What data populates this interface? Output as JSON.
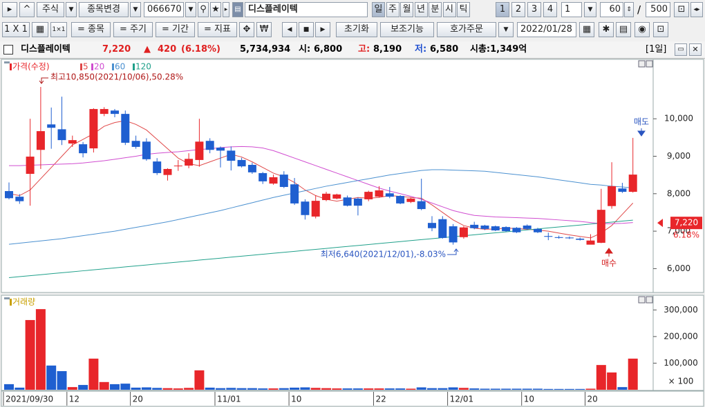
{
  "toolbar": {
    "market": "주식",
    "change": "종목변경",
    "code": "066670",
    "name": "디스플레이텍",
    "periods": [
      "일",
      "주",
      "월",
      "년",
      "분",
      "시",
      "틱"
    ],
    "counts": [
      "1",
      "2",
      "3",
      "4"
    ],
    "unit": "1",
    "view": "60",
    "slash": "/",
    "total": "500",
    "layout": "1 X 1",
    "menus": [
      "= 종목",
      "= 주기",
      "= 기간",
      "= 지표"
    ],
    "buttons": [
      "초기화",
      "보조기능",
      "호가주문"
    ],
    "date": "2022/01/28"
  },
  "info": {
    "name": "디스플레이텍",
    "price": "7,220",
    "arrow": "▲",
    "change": "420",
    "rate": "(6.18%)",
    "volume": "5,734,934",
    "open_label": "시:",
    "open": "6,800",
    "high_label": "고:",
    "high": "8,190",
    "low_label": "저:",
    "low": "6,580",
    "cap": "시총:1,349억",
    "period": "[1일]"
  },
  "chart_data": [
    {
      "type": "candlestick",
      "ylim": [
        5400,
        11550
      ],
      "yticks": [
        {
          "value": 6000,
          "label": "6,000"
        },
        {
          "value": 7000,
          "label": "7,000"
        },
        {
          "value": 8000,
          "label": "8,000"
        },
        {
          "value": 9000,
          "label": "9,000"
        },
        {
          "value": 10000,
          "label": "10,000"
        }
      ],
      "grid": false,
      "current_price": {
        "value": 7220,
        "label": "7,220"
      },
      "current_rate": "6.18%",
      "annotations": [
        {
          "text": "최고10,850(2021/10/06),50.28%",
          "color": "#b01818"
        },
        {
          "text": "최저6,640(2021/12/01),-8.03%",
          "color": "#2a55c0"
        },
        {
          "text": "매도",
          "color": "#2a55c0"
        },
        {
          "text": "매수",
          "color": "#d42020"
        }
      ],
      "series": [
        {
          "name": "가격(수정)",
          "color": "#e8262a",
          "down_color": "#1f5fd0",
          "open": [
            8070,
            7920,
            8530,
            9170,
            9850,
            9720,
            9340,
            9320,
            9210,
            10130,
            10220,
            10130,
            9410,
            9390,
            8860,
            8500,
            8750,
            8750,
            8900,
            9410,
            9230,
            9150,
            8900,
            8770,
            8550,
            8270,
            8510,
            8250,
            7790,
            7390,
            7830,
            7870,
            7900,
            7870,
            7850,
            7920,
            8010,
            7940,
            7780,
            7800,
            7220,
            7320,
            7130,
            6840,
            7170,
            7150,
            7130,
            7110,
            7090,
            7150,
            7060,
            6870,
            6840,
            6830,
            6800,
            6640,
            6690,
            7670,
            8140,
            8050
          ],
          "high": [
            8300,
            7990,
            10000,
            10850,
            10300,
            10590,
            9550,
            9380,
            10280,
            10310,
            10260,
            10220,
            9550,
            9480,
            8950,
            8680,
            8900,
            9080,
            10000,
            9480,
            9260,
            9260,
            8960,
            8830,
            8580,
            8510,
            8600,
            8420,
            7850,
            7960,
            8050,
            8000,
            7950,
            7900,
            8080,
            8200,
            8180,
            7960,
            7900,
            8400,
            7400,
            7400,
            7190,
            7130,
            7250,
            7170,
            7150,
            7130,
            7110,
            7180,
            7090,
            6960,
            6880,
            6860,
            6830,
            6920,
            8130,
            8840,
            8290,
            9490
          ],
          "low": [
            7850,
            7730,
            7680,
            8660,
            9200,
            9300,
            9250,
            8970,
            9100,
            10070,
            10040,
            9300,
            9200,
            8880,
            8500,
            8350,
            8610,
            8680,
            8720,
            9080,
            8700,
            8620,
            8700,
            8530,
            8260,
            8240,
            8150,
            7700,
            7310,
            7340,
            7800,
            7850,
            7660,
            7420,
            7800,
            7900,
            7880,
            7720,
            7750,
            7560,
            7000,
            6800,
            6640,
            6800,
            7050,
            7030,
            7000,
            6980,
            6950,
            7030,
            6950,
            6760,
            6800,
            6790,
            6750,
            6650,
            6680,
            7600,
            8020,
            8030
          ],
          "close": [
            7880,
            7800,
            8990,
            9670,
            9760,
            9430,
            9430,
            9080,
            10260,
            10260,
            10130,
            9360,
            9250,
            8920,
            8550,
            8660,
            8750,
            8930,
            9390,
            9170,
            9150,
            8880,
            8730,
            8570,
            8330,
            8440,
            8180,
            7740,
            7430,
            7810,
            8000,
            7980,
            7680,
            7680,
            8050,
            8090,
            7920,
            7740,
            7870,
            7590,
            7080,
            6820,
            6700,
            7100,
            7080,
            7060,
            7020,
            7000,
            6970,
            7060,
            6970,
            6850,
            6820,
            6810,
            6770,
            6750,
            7570,
            8200,
            8050,
            8510
          ]
        },
        {
          "name": "5",
          "color": "#e04848",
          "values": [
            8000,
            7950,
            8100,
            8400,
            8700,
            9000,
            9300,
            9450,
            9600,
            9800,
            9900,
            9950,
            9850,
            9700,
            9450,
            9200,
            8950,
            8800,
            8750,
            8850,
            8950,
            9050,
            8980,
            8850,
            8700,
            8550,
            8450,
            8300,
            8100,
            7950,
            7850,
            7800,
            7850,
            7900,
            7880,
            7900,
            7950,
            7930,
            7900,
            7880,
            7700,
            7500,
            7300,
            7150,
            7080,
            7050,
            7060,
            7080,
            7070,
            7050,
            7030,
            7000,
            6950,
            6900,
            6860,
            6820,
            6950,
            7150,
            7450,
            7750
          ]
        },
        {
          "name": "20",
          "color": "#d04cd0",
          "values": [
            8750,
            8750,
            8760,
            8770,
            8780,
            8790,
            8800,
            8820,
            8850,
            8880,
            8920,
            8960,
            9000,
            9050,
            9080,
            9100,
            9120,
            9150,
            9180,
            9200,
            9230,
            9250,
            9260,
            9250,
            9220,
            9150,
            9050,
            8950,
            8850,
            8750,
            8650,
            8550,
            8450,
            8350,
            8250,
            8150,
            8070,
            8000,
            7930,
            7850,
            7750,
            7650,
            7550,
            7480,
            7420,
            7400,
            7380,
            7370,
            7360,
            7350,
            7340,
            7320,
            7300,
            7280,
            7260,
            7230,
            7200,
            7200,
            7210,
            7230
          ]
        },
        {
          "name": "60",
          "color": "#4a90d0",
          "values": [
            6650,
            6680,
            6710,
            6740,
            6770,
            6800,
            6840,
            6880,
            6920,
            6960,
            7000,
            7050,
            7100,
            7150,
            7200,
            7250,
            7310,
            7370,
            7430,
            7490,
            7550,
            7620,
            7690,
            7760,
            7830,
            7900,
            7960,
            8020,
            8080,
            8140,
            8200,
            8250,
            8300,
            8350,
            8400,
            8450,
            8500,
            8540,
            8580,
            8620,
            8640,
            8640,
            8630,
            8620,
            8610,
            8600,
            8570,
            8540,
            8510,
            8480,
            8450,
            8410,
            8370,
            8330,
            8290,
            8250,
            8230,
            8200,
            8180,
            8150
          ]
        },
        {
          "name": "120",
          "color": "#1fa08a",
          "values": [
            5760,
            5786,
            5812,
            5838,
            5864,
            5890,
            5916,
            5942,
            5968,
            5994,
            6020,
            6046,
            6072,
            6098,
            6124,
            6150,
            6176,
            6202,
            6228,
            6254,
            6280,
            6306,
            6332,
            6358,
            6384,
            6410,
            6436,
            6462,
            6488,
            6514,
            6540,
            6566,
            6592,
            6618,
            6644,
            6670,
            6696,
            6722,
            6748,
            6774,
            6800,
            6826,
            6852,
            6878,
            6904,
            6930,
            6956,
            6982,
            7008,
            7034,
            7060,
            7086,
            7112,
            7138,
            7164,
            7190,
            7216,
            7242,
            7268,
            7294
          ]
        }
      ]
    },
    {
      "type": "bar",
      "ylim": [
        0,
        350000
      ],
      "yticks": [
        {
          "value": 100000,
          "label": "100,000"
        },
        {
          "value": 200000,
          "label": "200,000"
        },
        {
          "value": 300000,
          "label": "300,000"
        }
      ],
      "unit_label": "× 100",
      "grid": false,
      "categories": [
        "2021/09/30",
        null,
        null,
        null,
        null,
        null,
        "12",
        null,
        null,
        null,
        null,
        null,
        "20",
        null,
        null,
        null,
        null,
        null,
        null,
        null,
        "11/01",
        null,
        null,
        null,
        null,
        null,
        null,
        "10",
        null,
        null,
        null,
        null,
        null,
        null,
        null,
        "22",
        null,
        null,
        null,
        null,
        null,
        null,
        "12/01",
        null,
        null,
        null,
        null,
        null,
        null,
        "10",
        null,
        null,
        null,
        null,
        null,
        "20",
        null,
        null,
        null,
        null
      ],
      "series": [
        {
          "name": "거래량",
          "color": "#c8a000",
          "values": [
            21000,
            8000,
            262000,
            303000,
            91000,
            70000,
            10000,
            18000,
            117000,
            29000,
            21000,
            23000,
            8000,
            9000,
            7000,
            6000,
            5000,
            7000,
            73000,
            8000,
            6000,
            7000,
            6000,
            6000,
            5000,
            5000,
            6000,
            8000,
            9000,
            7000,
            6000,
            5000,
            5000,
            5000,
            5000,
            5000,
            5000,
            5000,
            4000,
            9000,
            6000,
            6000,
            9000,
            7000,
            5000,
            4000,
            4000,
            4000,
            4000,
            4000,
            4000,
            3000,
            3000,
            3000,
            3000,
            4000,
            93000,
            65000,
            10000,
            117000
          ]
        }
      ]
    }
  ]
}
